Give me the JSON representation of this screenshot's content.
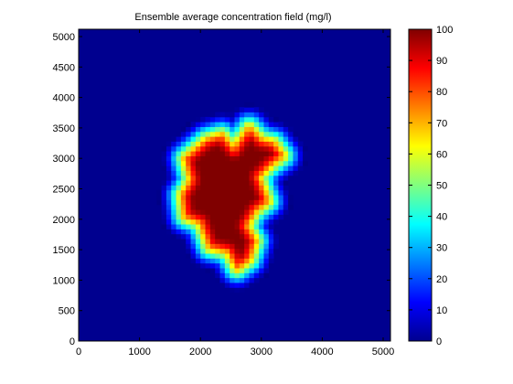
{
  "chart_data": {
    "type": "heatmap",
    "title": "Ensemble average concentration field (mg/l)",
    "xlabel": "",
    "ylabel": "",
    "xlim": [
      0,
      5120
    ],
    "ylim": [
      0,
      5120
    ],
    "x_ticks": [
      0,
      1000,
      2000,
      3000,
      4000,
      5000
    ],
    "y_ticks": [
      0,
      500,
      1000,
      1500,
      2000,
      2500,
      3000,
      3500,
      4000,
      4500,
      5000
    ],
    "grid": false,
    "colormap": "jet",
    "clim": [
      0,
      100
    ],
    "colorbar": {
      "position": "right",
      "ticks": [
        0,
        10,
        20,
        30,
        40,
        50,
        60,
        70,
        80,
        90,
        100
      ]
    },
    "background_value": 0,
    "plume_core_value": 100,
    "plume_boundary": [
      [
        2100,
        3300
      ],
      [
        2350,
        3380
      ],
      [
        2550,
        3150
      ],
      [
        2800,
        3500
      ],
      [
        3000,
        3300
      ],
      [
        3200,
        3250
      ],
      [
        3350,
        3050
      ],
      [
        3150,
        2900
      ],
      [
        2950,
        2700
      ],
      [
        3100,
        2300
      ],
      [
        2900,
        2150
      ],
      [
        2750,
        1900
      ],
      [
        2900,
        1650
      ],
      [
        2800,
        1350
      ],
      [
        2600,
        1200
      ],
      [
        2450,
        1480
      ],
      [
        2150,
        1550
      ],
      [
        2000,
        1950
      ],
      [
        1750,
        2050
      ],
      [
        1700,
        2400
      ],
      [
        1850,
        2650
      ],
      [
        1750,
        3000
      ]
    ],
    "transition_width": 420
  }
}
